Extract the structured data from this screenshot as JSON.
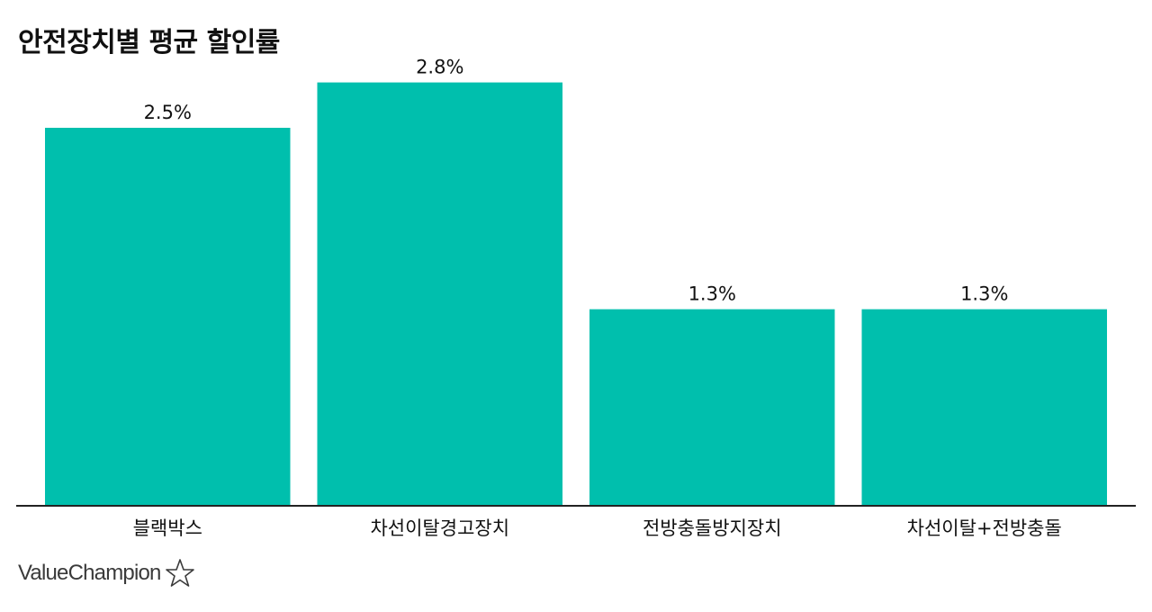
{
  "chart_data": {
    "type": "bar",
    "title": "안전장치별 평균 할인률",
    "categories": [
      "블랙박스",
      "차선이탈경고장치",
      "전방충돌방지장치",
      "차선이탈+전방충돌"
    ],
    "values": [
      2.5,
      2.8,
      1.3,
      1.3
    ],
    "value_labels": [
      "2.5%",
      "2.8%",
      "1.3%",
      "1.3%"
    ],
    "xlabel": "",
    "ylabel": "",
    "ylim": [
      0,
      3.0
    ],
    "grid": false,
    "legend": "none",
    "bar_color": "#00BFAD",
    "axis_color": "#222222"
  },
  "brand": {
    "name": "ValueChampion",
    "logo_icon": "star-outline-icon"
  }
}
